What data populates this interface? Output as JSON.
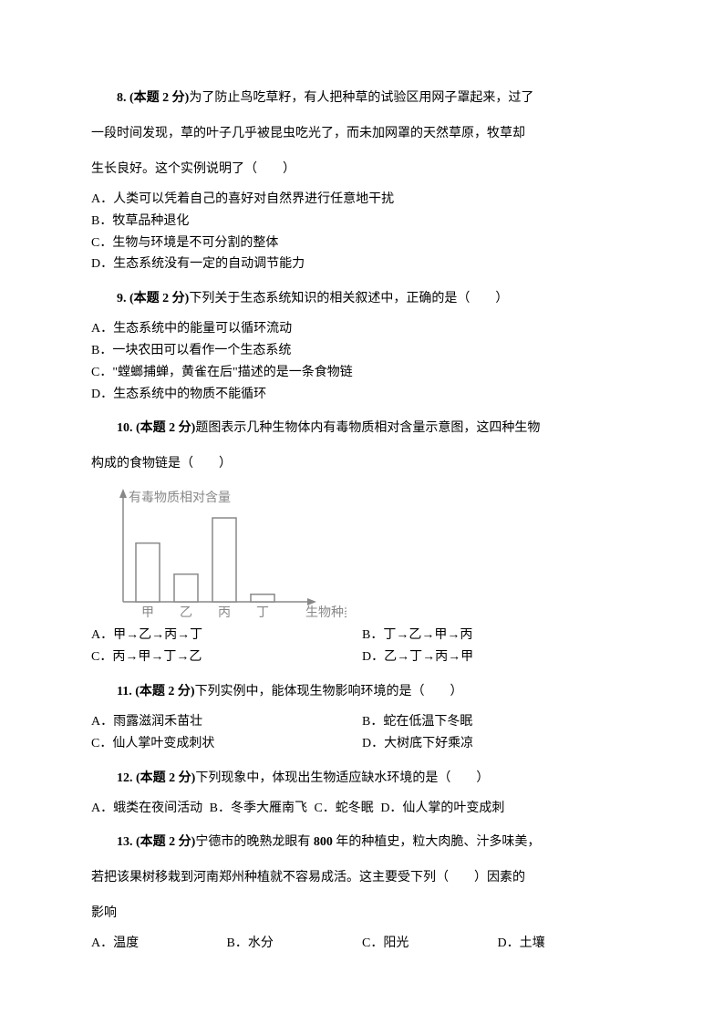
{
  "q8": {
    "num": "8.",
    "pts": "(本题 2 分)",
    "stem_l1": "为了防止鸟吃草籽，有人把种草的试验区用网子罩起来，过了",
    "stem_l2": "一段时间发现，草的叶子几乎被昆虫吃光了，而未加网罩的天然草原，牧草却",
    "stem_l3": "生长良好。这个实例说明了（　　）",
    "opts": {
      "A": "A．人类可以凭着自己的喜好对自然界进行任意地干扰",
      "B": "B．牧草品种退化",
      "C": "C．生物与环境是不可分割的整体",
      "D": "D．生态系统没有一定的自动调节能力"
    }
  },
  "q9": {
    "num": "9.",
    "pts": "(本题 2 分)",
    "stem": "下列关于生态系统知识的相关叙述中，正确的是（　　）",
    "opts": {
      "A": "A．生态系统中的能量可以循环流动",
      "B": "B．一块农田可以看作一个生态系统",
      "C": "C．\"螳螂捕蝉，黄雀在后\"描述的是一条食物链",
      "D": "D．生态系统中的物质不能循环"
    }
  },
  "q10": {
    "num": "10.",
    "pts": "(本题 2 分)",
    "stem_l1": "题图表示几种生物体内有毒物质相对含量示意图，这四种生物",
    "stem_l2": "构成的食物链是（　　）",
    "chart": {
      "type": "bar",
      "y_label": "有毒物质相对含量",
      "x_label": "生物种类",
      "categories": [
        "甲",
        "乙",
        "丙",
        "丁"
      ],
      "values": [
        70,
        33,
        100,
        9
      ],
      "bar_color": "#ffffff",
      "bar_border": "#888888",
      "axis_color": "#888888",
      "text_color": "#888888",
      "arrow": true
    },
    "opts": {
      "A": "A．甲→乙→丙→丁",
      "B": "B．丁→乙→甲→丙",
      "C": "C．丙→甲→丁→乙",
      "D": "D．乙→丁→丙→甲"
    }
  },
  "q11": {
    "num": "11.",
    "pts": "(本题 2 分)",
    "stem": "下列实例中，能体现生物影响环境的是（　　）",
    "opts": {
      "A": "A．雨露滋润禾苗壮",
      "B": "B．蛇在低温下冬眠",
      "C": "C．仙人掌叶变成刺状",
      "D": "D．大树底下好乘凉"
    }
  },
  "q12": {
    "num": "12.",
    "pts": "(本题 2 分)",
    "stem": "下列现象中，体现出生物适应缺水环境的是（　　）",
    "opts": {
      "A": "A．蛾类在夜间活动",
      "B": "B．冬季大雁南飞",
      "C": "C．蛇冬眠",
      "D": "D．仙人掌的叶变成刺"
    }
  },
  "q13": {
    "num": "13.",
    "pts": "(本题 2 分)",
    "stem_l1_a": "宁德市的晚熟龙眼有",
    "stem_l1_b": " 800 ",
    "stem_l1_c": "年的种植史，粒大肉脆、汁多味美，",
    "stem_l2": "若把该果树移栽到河南郑州种植就不容易成活。这主要受下列（　　）因素的",
    "stem_l3": "影响",
    "opts": {
      "A": "A．温度",
      "B": "B．水分",
      "C": "C．阳光",
      "D": "D．土壤"
    }
  }
}
